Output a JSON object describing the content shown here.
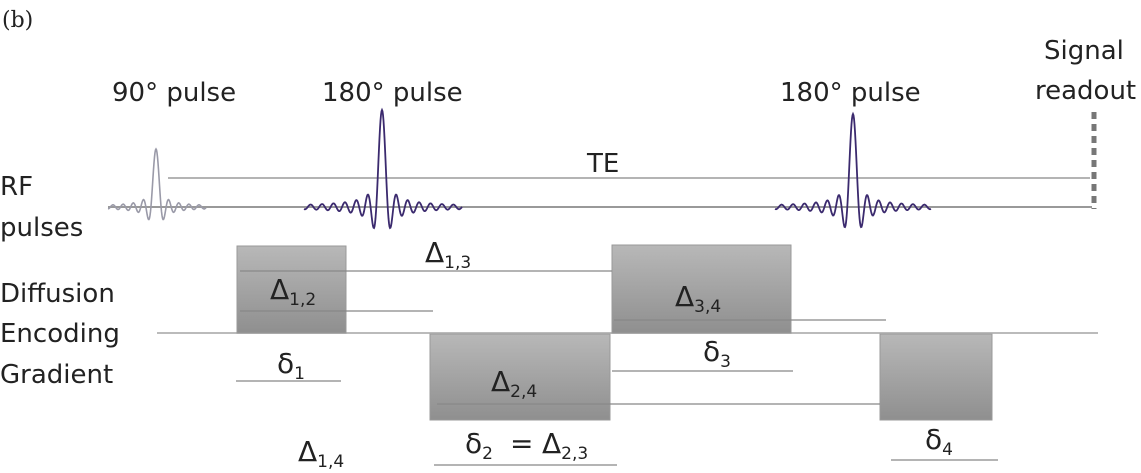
{
  "panel_label": "(b)",
  "labels": {
    "pulse_90": "90° pulse",
    "pulse_180_first": "180° pulse",
    "pulse_180_second": "180° pulse",
    "signal_line1": "Signal",
    "signal_line2": "readout",
    "te": "TE",
    "rf_line1": "RF",
    "rf_line2": "pulses",
    "gradient_line1": "Diffusion",
    "gradient_line2": "Encoding",
    "gradient_line3": "Gradient"
  },
  "intervals": {
    "delta_symbol": "Δ",
    "small_delta_symbol": "δ",
    "d13_sub": "1,3",
    "d12_sub": "1,2",
    "d34_sub": "3,4",
    "d24_sub": "2,4",
    "d14_sub": "1,4",
    "d23_sub": "2,3",
    "s1_sub": "1",
    "s2_sub": "2",
    "s3_sub": "3",
    "s4_sub": "4",
    "equals": "="
  },
  "colors": {
    "rf_90": "#9a9aa8",
    "rf_180": "#3b2a6e",
    "gradient_fill": "#a6a6a6",
    "lines": "#888888",
    "readout": "#777777"
  }
}
